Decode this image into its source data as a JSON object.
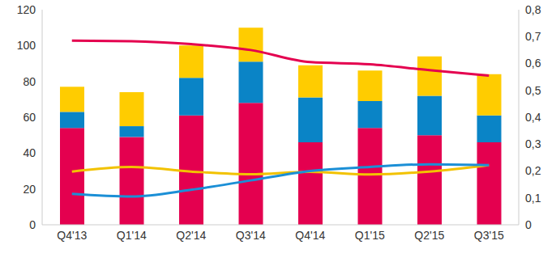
{
  "chart_data": {
    "type": "bar",
    "stacked": true,
    "grid": false,
    "categories": [
      "Q4'13",
      "Q1'14",
      "Q2'14",
      "Q3'14",
      "Q4'14",
      "Q1'15",
      "Q2'15",
      "Q3'15"
    ],
    "ylim": [
      0,
      120
    ],
    "yticks": [
      0,
      20,
      40,
      60,
      80,
      100,
      120
    ],
    "y2lim": [
      0,
      0.8
    ],
    "y2ticks": [
      0,
      {
        "value": 0.1,
        "label": "0,1"
      },
      {
        "value": 0.2,
        "label": "0,2"
      },
      {
        "value": 0.3,
        "label": "0,3"
      },
      {
        "value": 0.4,
        "label": "0,4"
      },
      {
        "value": 0.5,
        "label": "0,5"
      },
      {
        "value": 0.6,
        "label": "0,6"
      },
      {
        "value": 0.7,
        "label": "0,7"
      },
      {
        "value": 0.8,
        "label": "0,8"
      }
    ],
    "series": [
      {
        "type": "bar",
        "color": "#e4004f",
        "values": [
          54,
          49,
          61,
          68,
          46,
          54,
          50,
          46
        ]
      },
      {
        "type": "bar",
        "color": "#0a84c6",
        "values": [
          9,
          6,
          21,
          23,
          25,
          15,
          22,
          15
        ]
      },
      {
        "type": "bar",
        "color": "#ffcc00",
        "values": [
          14,
          19,
          18,
          19,
          18,
          17,
          22,
          23
        ]
      },
      {
        "type": "line",
        "axis": "y2",
        "color": "#e4004f",
        "values": [
          0.685,
          0.683,
          0.672,
          0.65,
          0.605,
          0.597,
          0.575,
          0.555
        ]
      },
      {
        "type": "line",
        "axis": "y2",
        "color": "#f2c200",
        "values": [
          0.198,
          0.215,
          0.198,
          0.188,
          0.197,
          0.187,
          0.198,
          0.222
        ]
      },
      {
        "type": "line",
        "axis": "y2",
        "color": "#1b8fd6",
        "values": [
          0.115,
          0.105,
          0.13,
          0.165,
          0.2,
          0.215,
          0.225,
          0.222
        ]
      }
    ]
  }
}
